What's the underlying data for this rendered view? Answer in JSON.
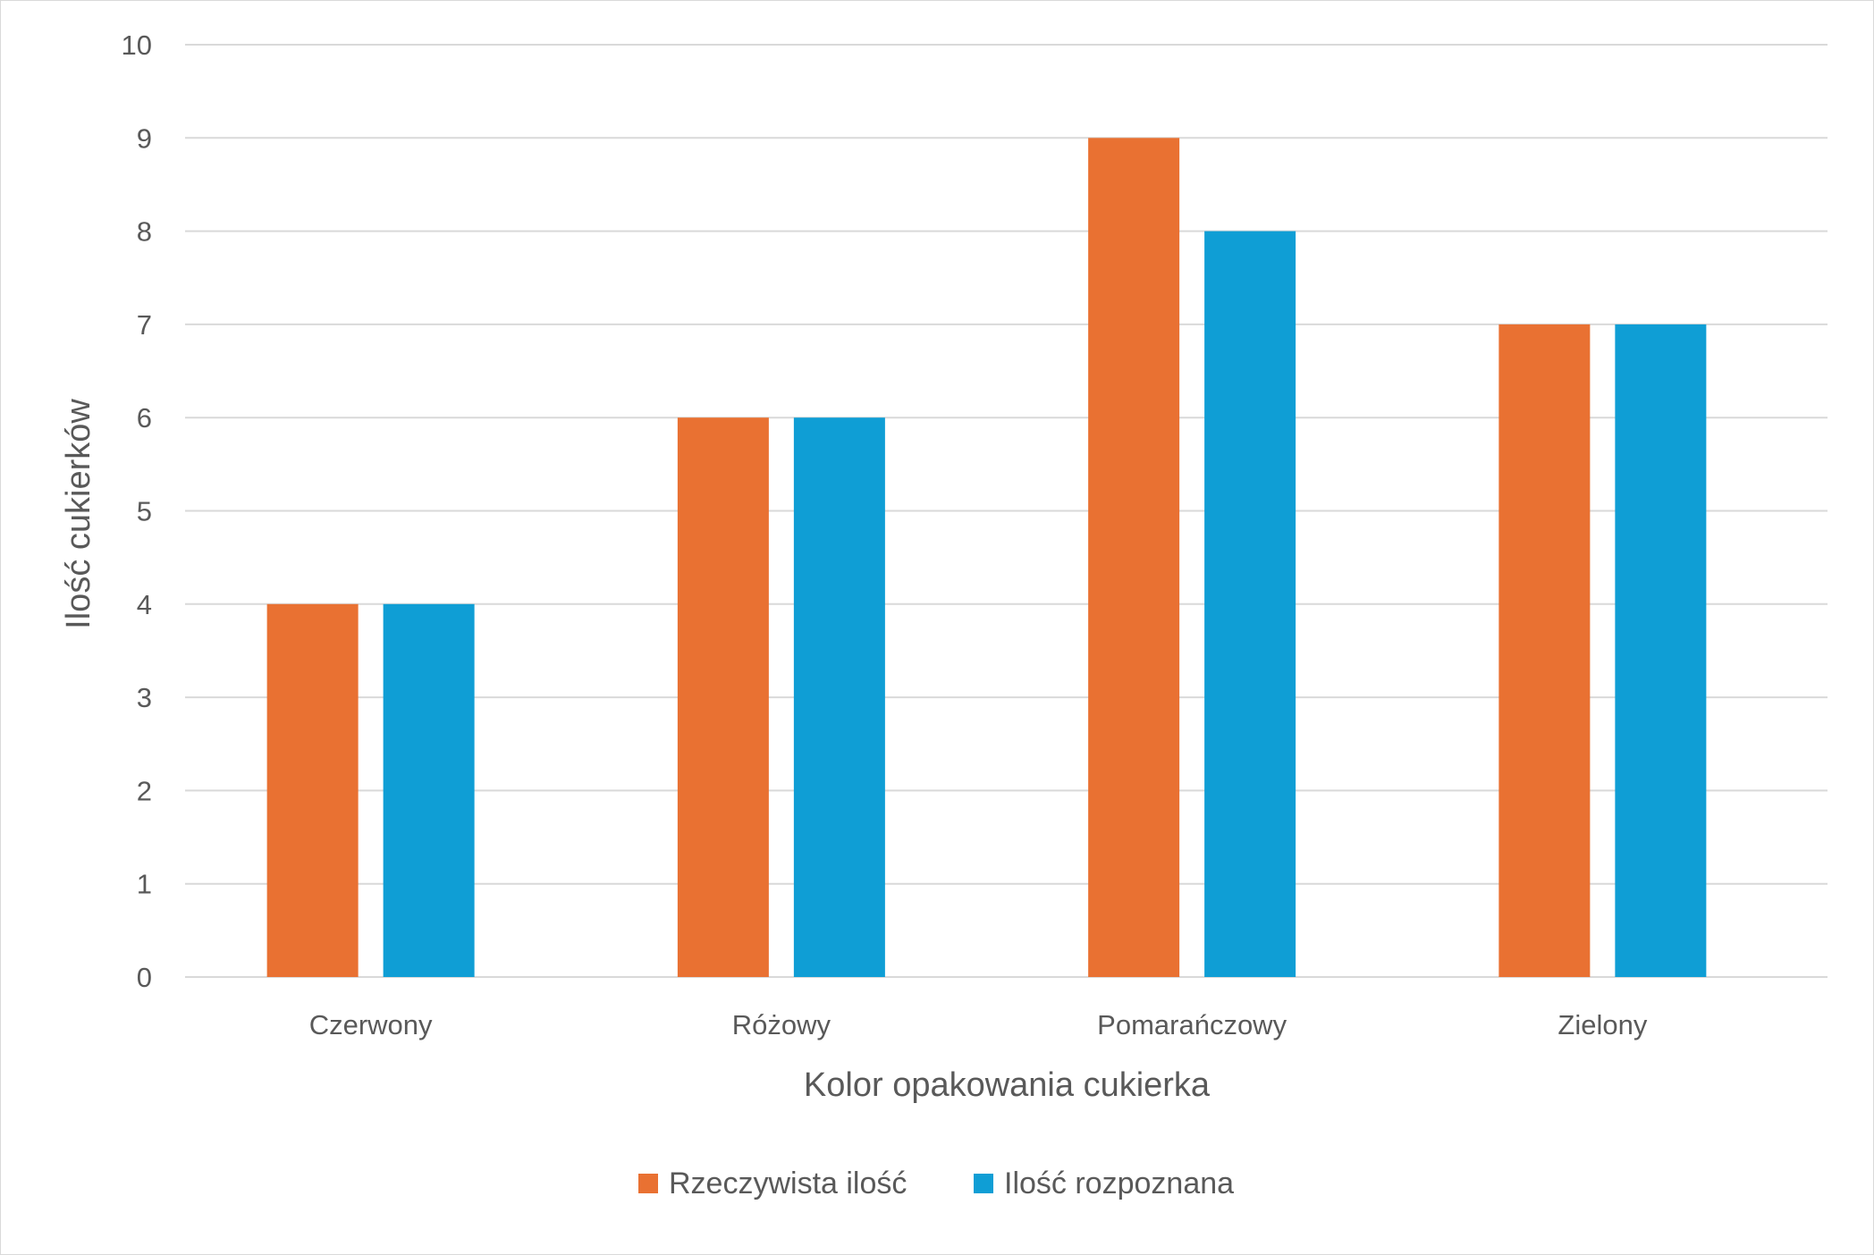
{
  "chart_data": {
    "type": "bar",
    "title": "",
    "xlabel": "Kolor opakowania cukierka",
    "ylabel": "Ilość cukierków",
    "categories": [
      "Czerwony",
      "Różowy",
      "Pomarańczowy",
      "Zielony"
    ],
    "series": [
      {
        "name": "Rzeczywista ilość",
        "values": [
          4,
          6,
          9,
          7
        ],
        "color": "#E97132"
      },
      {
        "name": "Ilość rozpoznana",
        "values": [
          4,
          6,
          8,
          7
        ],
        "color": "#0F9ED5"
      }
    ],
    "ylim": [
      0,
      10
    ],
    "yticks": [
      0,
      1,
      2,
      3,
      4,
      5,
      6,
      7,
      8,
      9,
      10
    ],
    "grid": true,
    "legend_position": "bottom",
    "gridline_color": "#d9d9d9"
  }
}
